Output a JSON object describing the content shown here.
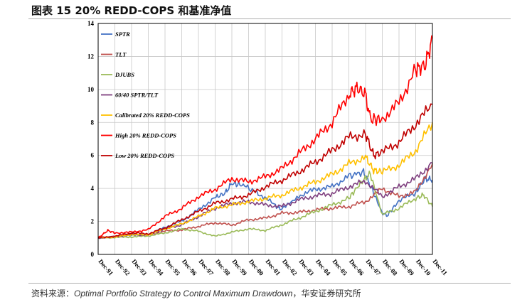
{
  "figure_title": "图表 15 20% REDD-COPS 和基准净值",
  "source": {
    "label": "资料来源：",
    "reference": "Optimal Portfolio Strategy to Control Maximum Drawdown",
    "publisher": "，华安证券研究所"
  },
  "chart_data": {
    "type": "line",
    "title": "",
    "xlabel": "",
    "ylabel": "",
    "ylim": [
      0,
      14
    ],
    "yticks": [
      0,
      2,
      4,
      6,
      8,
      10,
      12,
      14
    ],
    "xlim": [
      1991.92,
      2011.92
    ],
    "xtick_labels": [
      "Dec-91",
      "Dec-92",
      "Dec-93",
      "Dec-94",
      "Dec-95",
      "Dec-96",
      "Dec-97",
      "Dec-98",
      "Dec-99",
      "Dec-00",
      "Dec-01",
      "Dec-02",
      "Dec-03",
      "Dec-04",
      "Dec-05",
      "Dec-06",
      "Dec-07",
      "Dec-08",
      "Dec-09",
      "Dec-10",
      "Dec-11"
    ],
    "grid": true,
    "legend_position": "top-left",
    "series": [
      {
        "name": "SPTR",
        "color": "#4472c4",
        "x": [
          1991.92,
          1992.92,
          1993.92,
          1994.92,
          1995.92,
          1996.92,
          1997.92,
          1998.92,
          1999.5,
          1999.92,
          2000.6,
          2001.5,
          2002.5,
          2002.8,
          2003.92,
          2004.92,
          2005.92,
          2006.92,
          2007.8,
          2008.2,
          2008.9,
          2009.2,
          2009.92,
          2010.92,
          2011.5,
          2011.92
        ],
        "y": [
          1.0,
          1.07,
          1.18,
          1.2,
          1.65,
          2.02,
          2.7,
          3.45,
          3.7,
          4.3,
          4.2,
          3.7,
          3.0,
          2.75,
          3.55,
          3.95,
          4.1,
          4.75,
          5.0,
          4.2,
          2.55,
          2.35,
          3.25,
          3.75,
          4.6,
          4.5
        ]
      },
      {
        "name": "TLT",
        "color": "#c0504d",
        "x": [
          1991.92,
          1992.92,
          1993.92,
          1994.92,
          1995.92,
          1996.92,
          1997.92,
          1998.92,
          1999.92,
          2000.92,
          2001.92,
          2002.92,
          2003.92,
          2004.92,
          2005.92,
          2006.92,
          2007.92,
          2008.92,
          2009.92,
          2010.92,
          2011.92
        ],
        "y": [
          1.0,
          1.08,
          1.25,
          1.15,
          1.42,
          1.48,
          1.7,
          1.92,
          1.78,
          2.1,
          2.2,
          2.5,
          2.55,
          2.7,
          2.8,
          2.9,
          3.2,
          4.0,
          3.5,
          3.8,
          5.5
        ]
      },
      {
        "name": "DJUBS",
        "color": "#9bbb59",
        "x": [
          1991.92,
          1992.92,
          1993.92,
          1994.92,
          1995.92,
          1996.92,
          1997.92,
          1998.92,
          1999.92,
          2000.92,
          2001.92,
          2002.92,
          2003.92,
          2004.92,
          2005.92,
          2006.92,
          2007.6,
          2008.2,
          2008.92,
          2009.92,
          2010.92,
          2011.4,
          2011.92
        ],
        "y": [
          1.0,
          1.03,
          1.06,
          1.12,
          1.3,
          1.55,
          1.4,
          1.1,
          1.35,
          1.55,
          1.45,
          1.8,
          2.2,
          2.6,
          3.0,
          3.4,
          4.3,
          4.9,
          2.4,
          2.8,
          3.4,
          3.6,
          2.9
        ]
      },
      {
        "name": "60/40 SPTR/TLT",
        "color": "#7f3f7f",
        "x": [
          1991.92,
          1992.92,
          1993.92,
          1994.92,
          1995.92,
          1996.92,
          1997.92,
          1998.92,
          1999.92,
          2000.92,
          2001.92,
          2002.92,
          2003.92,
          2004.92,
          2005.92,
          2006.92,
          2007.92,
          2008.92,
          2009.92,
          2010.92,
          2011.92
        ],
        "y": [
          1.0,
          1.07,
          1.2,
          1.18,
          1.55,
          1.8,
          2.3,
          2.8,
          3.1,
          3.2,
          3.0,
          2.9,
          3.3,
          3.55,
          3.7,
          4.1,
          4.45,
          3.5,
          4.1,
          4.6,
          5.55
        ]
      },
      {
        "name": "Calibrated 20% REDD-COPS",
        "color": "#ffc000",
        "x": [
          1991.92,
          1992.92,
          1993.92,
          1994.92,
          1995.92,
          1996.92,
          1997.92,
          1998.92,
          1999.92,
          2000.92,
          2001.92,
          2002.92,
          2003.92,
          2004.92,
          2005.92,
          2006.92,
          2007.92,
          2008.4,
          2008.92,
          2009.92,
          2010.92,
          2011.92
        ],
        "y": [
          1.0,
          1.06,
          1.2,
          1.2,
          1.55,
          1.85,
          2.3,
          2.8,
          3.0,
          3.2,
          3.4,
          3.6,
          4.0,
          4.4,
          4.85,
          5.5,
          5.9,
          5.1,
          5.0,
          5.4,
          6.3,
          8.0
        ]
      },
      {
        "name": "High 20% REDD-COPS",
        "color": "#ff0000",
        "x": [
          1991.92,
          1992.5,
          1992.92,
          1993.92,
          1994.92,
          1995.92,
          1996.92,
          1997.92,
          1998.92,
          1999.92,
          2000.92,
          2001.92,
          2002.92,
          2003.92,
          2004.92,
          2005.92,
          2006.92,
          2007.4,
          2007.92,
          2008.2,
          2008.92,
          2009.92,
          2010.92,
          2011.5,
          2011.92
        ],
        "y": [
          1.0,
          1.45,
          1.3,
          1.35,
          1.5,
          2.3,
          2.8,
          3.5,
          3.95,
          4.6,
          4.4,
          4.7,
          5.2,
          6.1,
          7.0,
          8.0,
          9.7,
          10.1,
          9.7,
          8.2,
          8.2,
          9.2,
          11.2,
          11.5,
          13.1
        ]
      },
      {
        "name": "Low 20% REDD-COPS",
        "color": "#c00000",
        "x": [
          1991.92,
          1992.92,
          1993.92,
          1994.92,
          1995.92,
          1996.92,
          1997.92,
          1998.92,
          1999.92,
          2000.92,
          2001.92,
          2002.92,
          2003.92,
          2004.92,
          2005.92,
          2006.92,
          2007.92,
          2008.4,
          2008.92,
          2009.92,
          2010.92,
          2011.92
        ],
        "y": [
          1.0,
          1.1,
          1.3,
          1.25,
          1.6,
          2.1,
          2.6,
          3.1,
          3.35,
          3.6,
          4.1,
          4.5,
          5.0,
          5.6,
          6.3,
          7.1,
          7.3,
          6.0,
          6.2,
          6.8,
          7.9,
          9.1
        ]
      }
    ]
  }
}
